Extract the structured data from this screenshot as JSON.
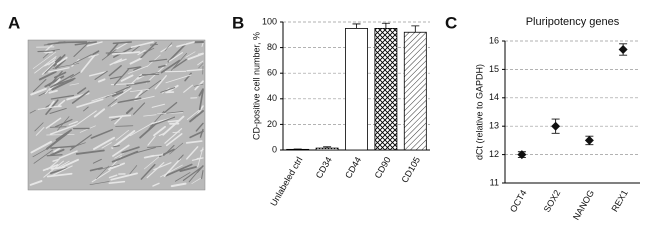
{
  "panel_labels": [
    "A",
    "B",
    "C"
  ],
  "chart_data": [
    {
      "type": "bar",
      "y_label": "CD-positive cell number, %",
      "categories": [
        "Unlabeled ctrl",
        "CD34",
        "CD44",
        "CD90",
        "CD105"
      ],
      "values": [
        0.5,
        1.5,
        95,
        95,
        92
      ],
      "errors": [
        0.3,
        1,
        3.5,
        4,
        5
      ],
      "patterns": [
        "solid",
        "dots",
        "none",
        "crosshatch",
        "hatch"
      ],
      "color": "#000000",
      "ylim": [
        0,
        100
      ],
      "yticks": [
        0,
        20,
        40,
        60,
        80,
        100
      ],
      "grid": true
    },
    {
      "type": "scatter",
      "title": "Pluripotency genes",
      "y_label": "dCt (relative to GAPDH)",
      "categories": [
        "OCT4",
        "SOX2",
        "NANOG",
        "REX1"
      ],
      "values": [
        12.0,
        13.0,
        12.5,
        15.7
      ],
      "errors": [
        0.1,
        0.25,
        0.15,
        0.2
      ],
      "marker": "diamond",
      "color": "#111111",
      "ylim": [
        11,
        16
      ],
      "yticks": [
        11,
        12,
        13,
        14,
        15,
        16
      ],
      "grid": true
    }
  ]
}
